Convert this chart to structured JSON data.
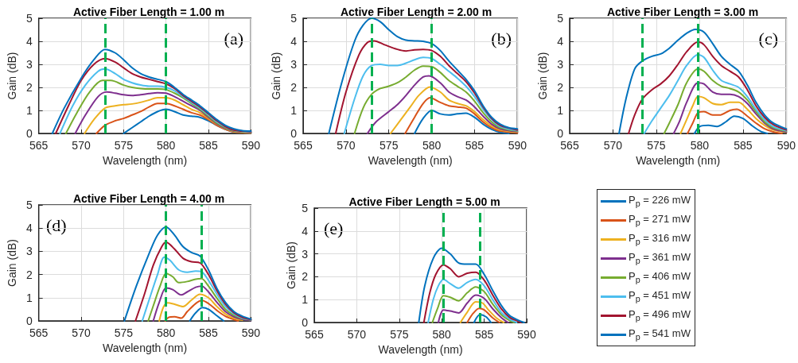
{
  "chart_data": [
    {
      "type": "line",
      "title": "Active Fiber Length = 1.00 m",
      "xlabel": "Wavelength (nm)",
      "ylabel": "Gain (dB)",
      "xlim": [
        565,
        590
      ],
      "xticks": [
        565,
        570,
        575,
        580,
        585,
        590
      ],
      "ylim": [
        0,
        5
      ],
      "yticks": [
        0,
        1,
        2,
        3,
        4,
        5
      ],
      "grid": true,
      "line_style": "solid",
      "annotations": [
        "(a)"
      ],
      "ref_lines": [
        {
          "axis": "x",
          "value": 572.8,
          "color": "#00b050",
          "line_style": "dashed"
        },
        {
          "axis": "x",
          "value": 580,
          "color": "#00b050",
          "line_style": "dashed"
        }
      ],
      "series": [
        {
          "color": "#0072bd",
          "x": [
            575,
            576,
            577,
            578,
            579,
            580,
            581,
            582,
            583,
            584,
            585,
            586,
            587,
            588,
            590
          ],
          "values": [
            0,
            0.25,
            0.5,
            0.75,
            0.95,
            1.05,
            0.95,
            0.8,
            0.75,
            0.7,
            0.55,
            0.35,
            0.18,
            0.07,
            0.02
          ]
        },
        {
          "color": "#d95319",
          "x": [
            571.8,
            572.8,
            574,
            575,
            576,
            577,
            578,
            579,
            580,
            581,
            582,
            583,
            584,
            585,
            586,
            587,
            588,
            590
          ],
          "values": [
            0,
            0.35,
            0.55,
            0.65,
            0.8,
            0.95,
            1.15,
            1.3,
            1.3,
            1.2,
            1.05,
            0.9,
            0.8,
            0.6,
            0.35,
            0.18,
            0.07,
            0.02
          ]
        },
        {
          "color": "#edb120",
          "x": [
            570.4,
            571.5,
            572.8,
            574,
            575,
            576,
            577,
            578,
            579,
            580,
            581,
            582,
            583,
            584,
            585,
            586,
            587,
            588,
            590
          ],
          "values": [
            0,
            0.6,
            1.1,
            1.2,
            1.25,
            1.28,
            1.35,
            1.45,
            1.55,
            1.55,
            1.45,
            1.25,
            1.05,
            0.9,
            0.65,
            0.4,
            0.2,
            0.08,
            0.03
          ]
        },
        {
          "color": "#7e2f8e",
          "x": [
            569.3,
            570.5,
            572,
            573,
            574,
            575,
            576,
            577,
            578,
            579,
            580,
            581,
            582,
            583,
            584,
            585,
            586,
            587,
            588,
            590
          ],
          "values": [
            0,
            0.8,
            1.6,
            1.8,
            1.75,
            1.68,
            1.65,
            1.68,
            1.73,
            1.77,
            1.75,
            1.6,
            1.4,
            1.2,
            1,
            0.7,
            0.42,
            0.22,
            0.1,
            0.04
          ]
        },
        {
          "color": "#77ac30",
          "x": [
            568.2,
            569.5,
            571,
            572.5,
            573.5,
            575,
            576,
            577,
            578,
            579,
            580,
            581,
            582,
            583,
            584,
            585,
            586,
            587,
            588,
            590
          ],
          "values": [
            0,
            0.9,
            1.8,
            2.3,
            2.3,
            2.1,
            2,
            1.95,
            1.93,
            1.93,
            1.9,
            1.75,
            1.55,
            1.3,
            1.05,
            0.75,
            0.45,
            0.25,
            0.12,
            0.05
          ]
        },
        {
          "color": "#4dbeee",
          "x": [
            567.5,
            569,
            570.5,
            572,
            572.8,
            574,
            575,
            576,
            577,
            578,
            579,
            580,
            581,
            582,
            583,
            584,
            585,
            586,
            587,
            588,
            590
          ],
          "values": [
            0,
            1.2,
            2.1,
            2.7,
            2.8,
            2.6,
            2.35,
            2.2,
            2.1,
            2.05,
            2.05,
            2,
            1.85,
            1.6,
            1.35,
            1.1,
            0.8,
            0.5,
            0.28,
            0.14,
            0.06
          ]
        },
        {
          "color": "#a2142f",
          "x": [
            567,
            568.5,
            570,
            571.5,
            572.8,
            574,
            575,
            576,
            577,
            578,
            579,
            580,
            581,
            582,
            583,
            584,
            585,
            586,
            587,
            588,
            590
          ],
          "values": [
            0,
            1.2,
            2.3,
            3,
            3.25,
            3.1,
            2.85,
            2.6,
            2.45,
            2.35,
            2.25,
            2.15,
            1.95,
            1.65,
            1.4,
            1.15,
            0.85,
            0.55,
            0.3,
            0.15,
            0.08
          ]
        },
        {
          "color": "#0072bd",
          "x": [
            566.6,
            568,
            570,
            571.5,
            572.8,
            574,
            575,
            576,
            577,
            578,
            579,
            580,
            581,
            582,
            583,
            584,
            585,
            586,
            587,
            588,
            589,
            590
          ],
          "values": [
            0,
            1.1,
            2.4,
            3.2,
            3.65,
            3.5,
            3.2,
            2.85,
            2.6,
            2.45,
            2.35,
            2.25,
            2,
            1.7,
            1.45,
            1.2,
            0.9,
            0.6,
            0.35,
            0.2,
            0.12,
            0.1
          ]
        }
      ]
    },
    {
      "type": "line",
      "title": "Active Fiber Length = 2.00 m",
      "xlabel": "Wavelength (nm)",
      "ylabel": "Gain (dB)",
      "xlim": [
        565,
        590
      ],
      "xticks": [
        565,
        570,
        575,
        580,
        585,
        590
      ],
      "ylim": [
        0,
        5
      ],
      "yticks": [
        0,
        1,
        2,
        3,
        4,
        5
      ],
      "grid": true,
      "line_style": "solid",
      "annotations": [
        "(b)"
      ],
      "ref_lines": [
        {
          "axis": "x",
          "value": 573,
          "color": "#00b050",
          "line_style": "dashed"
        },
        {
          "axis": "x",
          "value": 580,
          "color": "#00b050",
          "line_style": "dashed"
        }
      ],
      "series": [
        {
          "color": "#0072bd",
          "x": [
            578,
            579,
            580,
            581,
            582,
            583,
            584,
            585,
            586,
            587,
            588,
            589
          ],
          "values": [
            0,
            0.65,
            1,
            0.85,
            0.8,
            0.85,
            0.88,
            0.7,
            0.4,
            0.18,
            0.05,
            0
          ]
        },
        {
          "color": "#d95319",
          "x": [
            576.9,
            578,
            579,
            579.8,
            581,
            582,
            583,
            584,
            585,
            586,
            587,
            588,
            590
          ],
          "values": [
            0,
            0.7,
            1.3,
            1.55,
            1.35,
            1.2,
            1.15,
            1.1,
            0.85,
            0.5,
            0.25,
            0.1,
            0.03
          ]
        },
        {
          "color": "#edb120",
          "x": [
            575.2,
            576.5,
            577.5,
            578.5,
            579.8,
            581,
            582,
            583,
            584,
            585,
            586,
            587,
            588,
            590
          ],
          "values": [
            0,
            0.65,
            1.15,
            1.65,
            2.02,
            1.8,
            1.45,
            1.3,
            1.2,
            0.95,
            0.6,
            0.32,
            0.15,
            0.05
          ]
        },
        {
          "color": "#7e2f8e",
          "x": [
            572.5,
            573.5,
            575,
            576,
            577,
            578,
            579,
            579.7,
            581,
            582,
            583,
            584,
            585,
            586,
            587,
            588,
            590
          ],
          "values": [
            0,
            0.5,
            0.95,
            1.25,
            1.65,
            2.1,
            2.45,
            2.5,
            2.2,
            1.8,
            1.6,
            1.45,
            1.15,
            0.75,
            0.4,
            0.2,
            0.08
          ]
        },
        {
          "color": "#77ac30",
          "x": [
            571,
            572,
            573,
            574,
            575,
            576,
            577,
            578,
            579,
            580,
            581,
            582,
            583,
            584,
            585,
            586,
            587,
            588,
            590
          ],
          "values": [
            0,
            1.1,
            1.7,
            1.95,
            2.05,
            2.2,
            2.45,
            2.75,
            2.92,
            2.9,
            2.65,
            2.3,
            2.05,
            1.8,
            1.4,
            0.9,
            0.5,
            0.25,
            0.1
          ]
        },
        {
          "color": "#4dbeee",
          "x": [
            569.8,
            571,
            572,
            573,
            574,
            575,
            576,
            577,
            578,
            579,
            580,
            581,
            582,
            583,
            584,
            585,
            586,
            587,
            588,
            590
          ],
          "values": [
            0,
            1.5,
            2.5,
            2.95,
            3,
            2.95,
            2.95,
            3.05,
            3.2,
            3.3,
            3.25,
            3,
            2.7,
            2.4,
            2.05,
            1.6,
            1.05,
            0.6,
            0.3,
            0.12
          ]
        },
        {
          "color": "#a2142f",
          "x": [
            568.8,
            570,
            571.5,
            572.5,
            573.3,
            574.5,
            576,
            577,
            578,
            579,
            580,
            581,
            582,
            583,
            584,
            585,
            586,
            587,
            588,
            590
          ],
          "values": [
            0,
            1.8,
            3.4,
            3.95,
            4.02,
            3.85,
            3.65,
            3.58,
            3.63,
            3.65,
            3.6,
            3.35,
            2.95,
            2.6,
            2.25,
            1.75,
            1.15,
            0.65,
            0.35,
            0.15
          ]
        },
        {
          "color": "#0072bd",
          "x": [
            568,
            569.5,
            571,
            572,
            573,
            574,
            575,
            576,
            577,
            578,
            579,
            580,
            581,
            582,
            583,
            584,
            585,
            586,
            587,
            588,
            589,
            590
          ],
          "values": [
            0,
            2.2,
            4,
            4.7,
            5,
            4.85,
            4.5,
            4.2,
            4.05,
            4.02,
            4,
            3.9,
            3.6,
            3.15,
            2.75,
            2.35,
            1.85,
            1.2,
            0.7,
            0.4,
            0.25,
            0.2
          ]
        }
      ]
    },
    {
      "type": "line",
      "title": "Active Fiber Length = 3.00 m",
      "xlabel": "Wavelength (nm)",
      "ylabel": "Gain (dB)",
      "xlim": [
        565,
        590
      ],
      "xticks": [
        565,
        570,
        575,
        580,
        585,
        590
      ],
      "ylim": [
        0,
        5
      ],
      "yticks": [
        0,
        1,
        2,
        3,
        4,
        5
      ],
      "grid": true,
      "line_style": "solid",
      "annotations": [
        "(c)"
      ],
      "ref_lines": [
        {
          "axis": "x",
          "value": 573.4,
          "color": "#00b050",
          "line_style": "dashed"
        },
        {
          "axis": "x",
          "value": 579.8,
          "color": "#00b050",
          "line_style": "dashed"
        }
      ],
      "series": [
        {
          "color": "#0072bd",
          "x": [
            579.4,
            580,
            581,
            582,
            583,
            584,
            585,
            586,
            587,
            587.8
          ],
          "values": [
            0,
            0.3,
            0.35,
            0.3,
            0.5,
            0.75,
            0.65,
            0.35,
            0.1,
            0
          ]
        },
        {
          "color": "#d95319",
          "x": [
            578.6,
            579.2,
            579.8,
            580.5,
            581.5,
            582.3,
            583.5,
            584.3,
            585.5,
            586.5,
            587.5,
            588.5,
            589.5
          ],
          "values": [
            0,
            0.45,
            0.9,
            0.95,
            0.8,
            0.8,
            1,
            1.05,
            0.75,
            0.45,
            0.2,
            0.07,
            0
          ]
        },
        {
          "color": "#edb120",
          "x": [
            577.8,
            578.5,
            579.2,
            579.8,
            580.5,
            581.5,
            582.5,
            583.5,
            584.5,
            585.5,
            586.5,
            587.5,
            588.5,
            590
          ],
          "values": [
            0,
            0.6,
            1.2,
            1.6,
            1.55,
            1.3,
            1.25,
            1.35,
            1.35,
            1.05,
            0.65,
            0.35,
            0.15,
            0.05
          ]
        },
        {
          "color": "#7e2f8e",
          "x": [
            577,
            577.7,
            578.5,
            579.8,
            580.5,
            581.5,
            582.5,
            583.5,
            584.5,
            585.5,
            586.5,
            587.5,
            588.5,
            590
          ],
          "values": [
            0,
            0.55,
            1.35,
            2.2,
            2.15,
            1.8,
            1.7,
            1.7,
            1.6,
            1.3,
            0.85,
            0.45,
            0.2,
            0.07
          ]
        },
        {
          "color": "#77ac30",
          "x": [
            575.9,
            576.5,
            577.5,
            578.5,
            579.8,
            580.5,
            581.5,
            582.5,
            583.5,
            584.5,
            585.5,
            586.5,
            587.5,
            588.5,
            590
          ],
          "values": [
            0,
            0.45,
            1.25,
            2.2,
            2.8,
            2.7,
            2.3,
            2.05,
            1.95,
            1.8,
            1.45,
            0.95,
            0.5,
            0.25,
            0.1
          ]
        },
        {
          "color": "#4dbeee",
          "x": [
            573.6,
            574.5,
            575.5,
            576.5,
            577.5,
            578.5,
            579.8,
            580.5,
            581.5,
            582.5,
            583.5,
            584.5,
            585.5,
            586.5,
            587.5,
            588.5,
            590
          ],
          "values": [
            0,
            0.55,
            1.1,
            1.65,
            2.3,
            2.95,
            3.42,
            3.3,
            2.75,
            2.3,
            2.15,
            2,
            1.6,
            1.05,
            0.6,
            0.3,
            0.12
          ]
        },
        {
          "color": "#a2142f",
          "x": [
            571.8,
            572.5,
            573.4,
            574.5,
            575.5,
            576.5,
            577.5,
            578.5,
            579.8,
            580.5,
            581.5,
            582.5,
            583.5,
            584.5,
            585.5,
            586.5,
            587.5,
            588.5,
            590
          ],
          "values": [
            0,
            0.8,
            1.5,
            1.9,
            2.15,
            2.5,
            3,
            3.55,
            3.97,
            3.85,
            3.35,
            2.95,
            2.7,
            2.45,
            1.9,
            1.2,
            0.7,
            0.38,
            0.15
          ]
        },
        {
          "color": "#0072bd",
          "x": [
            570.7,
            571.5,
            572.5,
            573.4,
            574.5,
            575.5,
            576.5,
            577.5,
            578.5,
            579.5,
            580.5,
            581.5,
            582.5,
            583.5,
            584.5,
            585.5,
            586.5,
            587.5,
            588.5,
            590
          ],
          "values": [
            0,
            1.5,
            2.8,
            3.15,
            3.35,
            3.45,
            3.7,
            4.05,
            4.35,
            4.52,
            4.4,
            3.9,
            3.35,
            3,
            2.7,
            2.1,
            1.35,
            0.8,
            0.45,
            0.2
          ]
        }
      ]
    },
    {
      "type": "line",
      "title": "Active Fiber Length = 4.00 m",
      "xlabel": "Wavelength (nm)",
      "ylabel": "Gain (dB)",
      "xlim": [
        565,
        590
      ],
      "xticks": [
        565,
        570,
        575,
        580,
        585,
        590
      ],
      "ylim": [
        0,
        5
      ],
      "yticks": [
        0,
        1,
        2,
        3,
        4,
        5
      ],
      "grid": true,
      "line_style": "solid",
      "annotations": [
        "(d)"
      ],
      "ref_lines": [
        {
          "axis": "x",
          "value": 580,
          "color": "#00b050",
          "line_style": "dashed"
        },
        {
          "axis": "x",
          "value": 584.2,
          "color": "#00b050",
          "line_style": "dashed"
        }
      ],
      "series": [
        {
          "color": "#0072bd",
          "x": [
            582.8,
            583.5,
            584.3,
            585,
            586,
            586.8
          ],
          "values": [
            0,
            0.35,
            0.57,
            0.5,
            0.22,
            0
          ]
        },
        {
          "color": "#d95319",
          "x": [
            579.9,
            580.3,
            581,
            581.8,
            582.5,
            583.5,
            584.2,
            585,
            586,
            587,
            588,
            588.5
          ],
          "values": [
            0,
            0.15,
            0.18,
            0.12,
            0.4,
            0.75,
            0.88,
            0.75,
            0.45,
            0.2,
            0.06,
            0
          ]
        },
        {
          "color": "#edb120",
          "x": [
            579.2,
            579.7,
            580.2,
            581,
            582,
            583,
            584,
            585,
            586,
            587,
            588,
            589
          ],
          "values": [
            0,
            0.6,
            0.78,
            0.72,
            0.62,
            0.9,
            1.15,
            1,
            0.62,
            0.3,
            0.12,
            0.03
          ]
        },
        {
          "color": "#7e2f8e",
          "x": [
            578.5,
            579.2,
            580,
            580.8,
            581.8,
            582.5,
            583.5,
            584.2,
            585,
            586,
            587,
            588,
            589,
            590
          ],
          "values": [
            0,
            0.8,
            1.42,
            1.35,
            1.12,
            1.25,
            1.45,
            1.5,
            1.25,
            0.8,
            0.4,
            0.18,
            0.07,
            0.02
          ]
        },
        {
          "color": "#77ac30",
          "x": [
            577.9,
            578.5,
            579.3,
            580,
            580.8,
            581.5,
            582.5,
            583.5,
            584.2,
            585,
            586,
            587,
            588,
            589,
            590
          ],
          "values": [
            0,
            0.65,
            1.5,
            2.05,
            1.9,
            1.65,
            1.7,
            1.8,
            1.82,
            1.5,
            0.98,
            0.5,
            0.24,
            0.1,
            0.04
          ]
        },
        {
          "color": "#4dbeee",
          "x": [
            577.2,
            578,
            579,
            579.8,
            580.5,
            581.5,
            582.5,
            583.5,
            584.2,
            585,
            586,
            587,
            588,
            589,
            590
          ],
          "values": [
            0,
            0.9,
            2,
            2.75,
            2.6,
            2.2,
            2.1,
            2.15,
            2.12,
            1.75,
            1.15,
            0.62,
            0.3,
            0.12,
            0.05
          ]
        },
        {
          "color": "#a2142f",
          "x": [
            576.4,
            577.5,
            578.5,
            579.5,
            580,
            581,
            582,
            583,
            584,
            585,
            586,
            587,
            588,
            589,
            590
          ],
          "values": [
            0,
            1.2,
            2.4,
            3.2,
            3.4,
            3.1,
            2.7,
            2.55,
            2.5,
            2,
            1.3,
            0.72,
            0.35,
            0.15,
            0.06
          ]
        },
        {
          "color": "#0072bd",
          "x": [
            575.1,
            576.5,
            578,
            579,
            580,
            581,
            582,
            583,
            584,
            585,
            586,
            587,
            588,
            589,
            590
          ],
          "values": [
            0,
            1.5,
            2.9,
            3.7,
            4.05,
            3.7,
            3.2,
            2.95,
            2.8,
            2.2,
            1.4,
            0.8,
            0.4,
            0.2,
            0.08
          ]
        }
      ]
    },
    {
      "type": "line",
      "title": "Active Fiber Length = 5.00 m",
      "xlabel": "Wavelength (nm)",
      "ylabel": "Gain (dB)",
      "xlim": [
        565,
        590
      ],
      "xticks": [
        565,
        570,
        575,
        580,
        585,
        590
      ],
      "ylim": [
        0,
        5
      ],
      "yticks": [
        0,
        1,
        2,
        3,
        4,
        5
      ],
      "grid": true,
      "line_style": "solid",
      "legend": "right",
      "annotations": [
        "(e)"
      ],
      "ref_lines": [
        {
          "axis": "x",
          "value": 580.2,
          "color": "#00b050",
          "line_style": "dashed"
        },
        {
          "axis": "x",
          "value": 584.5,
          "color": "#00b050",
          "line_style": "dashed"
        }
      ],
      "series": [
        {
          "name": "P$_{p}$ = 226 mW",
          "color": "#0072bd",
          "x": [
            583.8,
            584.5,
            585.2,
            585.8
          ],
          "values": [
            0,
            0.35,
            0.25,
            0
          ]
        },
        {
          "name": "P$_{p}$ = 271 mW",
          "color": "#d95319",
          "x": [
            583,
            583.7,
            584.4,
            585,
            586,
            586.8
          ],
          "values": [
            0,
            0.4,
            0.62,
            0.55,
            0.2,
            0
          ]
        },
        {
          "name": "P$_{p}$ = 316 mW",
          "color": "#edb120",
          "x": [
            582.2,
            583,
            584,
            584.8,
            585.5,
            586.5,
            587.3
          ],
          "values": [
            0,
            0.45,
            0.9,
            0.85,
            0.55,
            0.18,
            0
          ]
        },
        {
          "name": "P$_{p}$ = 361 mW",
          "color": "#7e2f8e",
          "x": [
            579.6,
            580.2,
            581,
            582,
            583,
            584,
            585,
            586,
            587,
            587.8
          ],
          "values": [
            0,
            0.55,
            0.5,
            0.42,
            0.85,
            1.2,
            1.05,
            0.6,
            0.22,
            0
          ]
        },
        {
          "name": "P$_{p}$ = 406 mW",
          "color": "#77ac30",
          "x": [
            578.9,
            579.5,
            580.2,
            581,
            582,
            583,
            584,
            585,
            586,
            587,
            588,
            588.5
          ],
          "values": [
            0,
            0.6,
            1.17,
            1.1,
            0.95,
            1.3,
            1.55,
            1.35,
            0.8,
            0.35,
            0.08,
            0
          ]
        },
        {
          "name": "P$_{p}$ = 451 mW",
          "color": "#4dbeee",
          "x": [
            578.4,
            579,
            579.6,
            580.2,
            581,
            582,
            583,
            584,
            585,
            586,
            587,
            588,
            588.8
          ],
          "values": [
            0,
            1,
            1.6,
            1.88,
            1.7,
            1.5,
            1.75,
            1.88,
            1.6,
            1,
            0.45,
            0.15,
            0
          ]
        },
        {
          "name": "P$_{p}$ = 496 mW",
          "color": "#a2142f",
          "x": [
            577.9,
            578.6,
            579.3,
            580.2,
            581,
            582,
            583,
            584,
            585,
            586,
            587,
            588,
            589,
            589.3
          ],
          "values": [
            0,
            1.3,
            2.1,
            2.52,
            2.35,
            2,
            2.15,
            2.2,
            1.85,
            1.2,
            0.6,
            0.22,
            0.05,
            0
          ]
        },
        {
          "name": "P$_{p}$ = 541 mW",
          "color": "#0072bd",
          "x": [
            577.3,
            578,
            579,
            580,
            581,
            582,
            583,
            584,
            585,
            586,
            587,
            588,
            589,
            589.7
          ],
          "values": [
            0,
            1.6,
            2.8,
            3.25,
            3,
            2.6,
            2.55,
            2.55,
            2.1,
            1.4,
            0.75,
            0.3,
            0.1,
            0
          ]
        }
      ]
    }
  ]
}
